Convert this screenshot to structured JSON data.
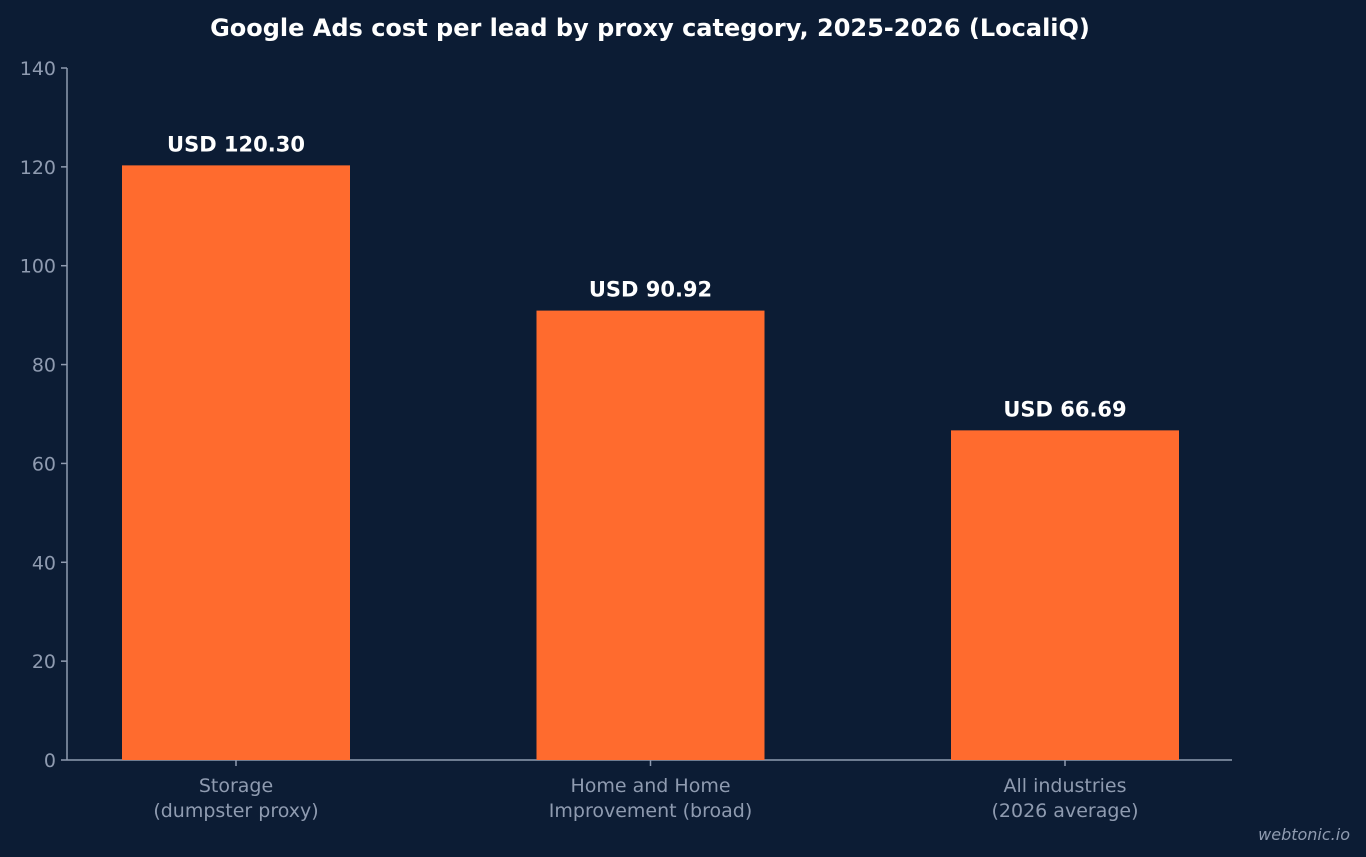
{
  "chart_data": {
    "type": "bar",
    "title": "Google Ads cost per lead by proxy category, 2025-2026 (LocaliQ)",
    "xlabel": "",
    "ylabel": "",
    "categories": [
      [
        "Storage",
        "(dumpster proxy)"
      ],
      [
        "Home and Home",
        "Improvement (broad)"
      ],
      [
        "All industries",
        "(2026 average)"
      ]
    ],
    "values": [
      120.3,
      90.92,
      66.69
    ],
    "data_labels": [
      "USD 120.30",
      "USD 90.92",
      "USD 66.69"
    ],
    "ylim": [
      0,
      140
    ],
    "yticks": [
      0,
      20,
      40,
      60,
      80,
      100,
      120,
      140
    ],
    "grid": false,
    "legend": "none"
  },
  "colors": {
    "background": "#0c1c34",
    "bar": "#ff6b2e",
    "axis": "#8f9bb0",
    "text": "#ffffff"
  },
  "watermark": "webtonic.io"
}
